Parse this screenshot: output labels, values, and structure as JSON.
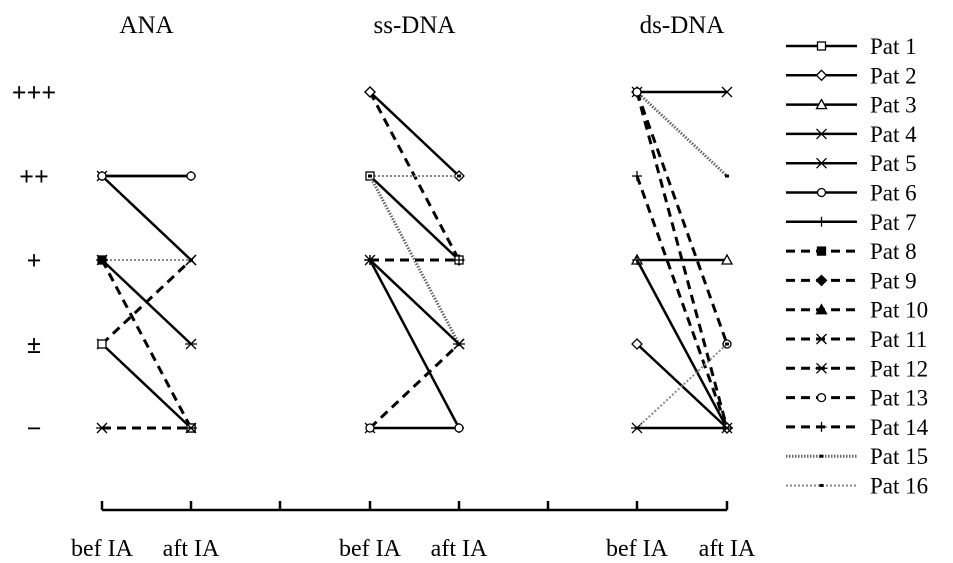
{
  "chart_data": {
    "type": "line",
    "panels": [
      {
        "title": "ANA",
        "x": [
          "bef IA",
          "aft IA"
        ]
      },
      {
        "title": "ss-DNA",
        "x": [
          "bef IA",
          "aft IA"
        ]
      },
      {
        "title": "ds-DNA",
        "x": [
          "bef IA",
          "aft IA"
        ]
      }
    ],
    "y_categories": [
      "−",
      "±",
      "+",
      "++",
      "+++"
    ],
    "legend_position": "right",
    "series": [
      {
        "name": "Pat 1",
        "style": "solid",
        "marker": "square-open"
      },
      {
        "name": "Pat 2",
        "style": "solid",
        "marker": "diamond-open"
      },
      {
        "name": "Pat 3",
        "style": "solid",
        "marker": "triangle-open"
      },
      {
        "name": "Pat 4",
        "style": "solid",
        "marker": "x"
      },
      {
        "name": "Pat 5",
        "style": "solid",
        "marker": "asterisk"
      },
      {
        "name": "Pat 6",
        "style": "solid",
        "marker": "circle-open"
      },
      {
        "name": "Pat 7",
        "style": "solid",
        "marker": "plus"
      },
      {
        "name": "Pat 8",
        "style": "dashed",
        "marker": "square-filled"
      },
      {
        "name": "Pat 9",
        "style": "dashed",
        "marker": "diamond-filled"
      },
      {
        "name": "Pat 10",
        "style": "dashed",
        "marker": "triangle-filled"
      },
      {
        "name": "Pat 11",
        "style": "dashed",
        "marker": "x"
      },
      {
        "name": "Pat 12",
        "style": "dashed",
        "marker": "asterisk"
      },
      {
        "name": "Pat 13",
        "style": "dashed",
        "marker": "circle-open"
      },
      {
        "name": "Pat 14",
        "style": "dashed",
        "marker": "plus"
      },
      {
        "name": "Pat 15",
        "style": "hatched",
        "marker": "dash"
      },
      {
        "name": "Pat 16",
        "style": "dotted",
        "marker": "dash"
      }
    ],
    "lines": [
      {
        "panel": 0,
        "series": "Pat 7",
        "values": [
          "++",
          "++"
        ]
      },
      {
        "panel": 0,
        "series": "Pat 4",
        "values": [
          "++",
          "+"
        ]
      },
      {
        "panel": 0,
        "series": "Pat 16",
        "values": [
          "+",
          "+"
        ]
      },
      {
        "panel": 0,
        "series": "Pat 8",
        "values": [
          "+",
          "−"
        ]
      },
      {
        "panel": 0,
        "series": "Pat 11",
        "values": [
          "±",
          "+"
        ]
      },
      {
        "panel": 0,
        "series": "Pat 1",
        "values": [
          "±",
          "−"
        ]
      },
      {
        "panel": 0,
        "series": "Pat 12",
        "values": [
          "−",
          "−"
        ]
      },
      {
        "panel": 0,
        "series": "Pat 6",
        "values": [
          "++",
          "++"
        ]
      },
      {
        "panel": 0,
        "series": "Pat 5",
        "values": [
          "+",
          "±"
        ]
      },
      {
        "panel": 1,
        "series": "Pat 9",
        "values": [
          "+++",
          "+"
        ]
      },
      {
        "panel": 1,
        "series": "Pat 2",
        "values": [
          "+++",
          "++"
        ]
      },
      {
        "panel": 1,
        "series": "Pat 16",
        "values": [
          "++",
          "++"
        ]
      },
      {
        "panel": 1,
        "series": "Pat 1",
        "values": [
          "++",
          "+"
        ]
      },
      {
        "panel": 1,
        "series": "Pat 15",
        "values": [
          "++",
          "±"
        ]
      },
      {
        "panel": 1,
        "series": "Pat 14",
        "values": [
          "+",
          "+"
        ]
      },
      {
        "panel": 1,
        "series": "Pat 5",
        "values": [
          "+",
          "±"
        ]
      },
      {
        "panel": 1,
        "series": "Pat 7",
        "values": [
          "+",
          "−"
        ]
      },
      {
        "panel": 1,
        "series": "Pat 11",
        "values": [
          "−",
          "±"
        ]
      },
      {
        "panel": 1,
        "series": "Pat 6",
        "values": [
          "−",
          "−"
        ]
      },
      {
        "panel": 2,
        "series": "Pat 4",
        "values": [
          "+++",
          "+++"
        ]
      },
      {
        "panel": 2,
        "series": "Pat 15",
        "values": [
          "+++",
          "++"
        ]
      },
      {
        "panel": 2,
        "series": "Pat 9",
        "values": [
          "+++",
          "−"
        ]
      },
      {
        "panel": 2,
        "series": "Pat 14",
        "values": [
          "++",
          "−"
        ]
      },
      {
        "panel": 2,
        "series": "Pat 3",
        "values": [
          "+",
          "+"
        ]
      },
      {
        "panel": 2,
        "series": "Pat 7",
        "values": [
          "+",
          "−"
        ]
      },
      {
        "panel": 2,
        "series": "Pat 13",
        "values": [
          "+++",
          "±"
        ]
      },
      {
        "panel": 2,
        "series": "Pat 2",
        "values": [
          "±",
          "−"
        ]
      },
      {
        "panel": 2,
        "series": "Pat 5",
        "values": [
          "−",
          "−"
        ]
      },
      {
        "panel": 2,
        "series": "Pat 16",
        "values": [
          "−",
          "±"
        ]
      }
    ]
  }
}
